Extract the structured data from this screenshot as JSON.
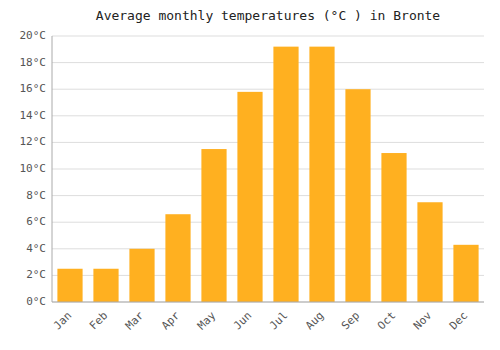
{
  "chart_data": {
    "type": "bar",
    "title": "Average monthly temperatures (°C ) in Bronte",
    "categories": [
      "Jan",
      "Feb",
      "Mar",
      "Apr",
      "May",
      "Jun",
      "Jul",
      "Aug",
      "Sep",
      "Oct",
      "Nov",
      "Dec"
    ],
    "values": [
      2.5,
      2.5,
      4.0,
      6.6,
      11.5,
      15.8,
      19.2,
      19.2,
      16.0,
      11.2,
      7.5,
      4.3
    ],
    "color": "#FFB020",
    "ylim": [
      0,
      20
    ],
    "yticks": [
      {
        "value": 0,
        "label": "0°C"
      },
      {
        "value": 2,
        "label": "2°C"
      },
      {
        "value": 4,
        "label": "4°C"
      },
      {
        "value": 6,
        "label": "6°C"
      },
      {
        "value": 8,
        "label": "8°C"
      },
      {
        "value": 10,
        "label": "10°C"
      },
      {
        "value": 12,
        "label": "12°C"
      },
      {
        "value": 14,
        "label": "14°C"
      },
      {
        "value": 16,
        "label": "16°C"
      },
      {
        "value": 18,
        "label": "18°C"
      },
      {
        "value": 20,
        "label": "20°C"
      }
    ],
    "grid": true
  }
}
